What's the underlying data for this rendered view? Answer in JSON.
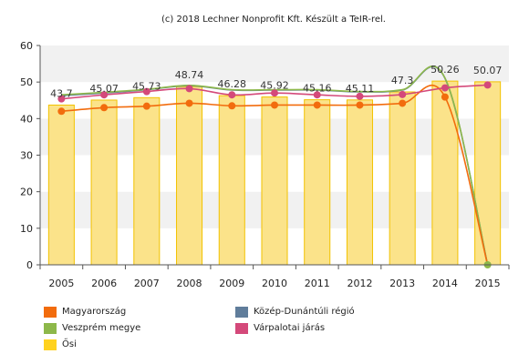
{
  "chart_data": {
    "type": "bar",
    "title": "(c) 2018 Lechner Nonprofit Kft. Készült a TeIR-rel.",
    "categories": [
      "2005",
      "2006",
      "2007",
      "2008",
      "2009",
      "2010",
      "2011",
      "2012",
      "2013",
      "2014",
      "2015"
    ],
    "ylim": [
      0,
      60
    ],
    "yticks": [
      0,
      10,
      20,
      30,
      40,
      50,
      60
    ],
    "grid": "horizontal-bands",
    "legend_position": "bottom",
    "colors": {
      "bar_fill": "#fbe38a",
      "bar_stroke": "#f2c200",
      "Magyarország": "#f26c0d",
      "Közép-Dunántúli régió": "#607d9b",
      "Veszprém megye": "#8db84a",
      "Várpalotai járás": "#d4497a",
      "Ősi": "#ffd21f"
    },
    "series": [
      {
        "name": "Magyarország",
        "kind": "line",
        "values": [
          42.0,
          43.0,
          43.4,
          44.2,
          43.5,
          43.7,
          43.7,
          43.7,
          44.2,
          45.9,
          0
        ]
      },
      {
        "name": "Közép-Dunántúli régió",
        "kind": "line",
        "values": [
          46.3,
          47.0,
          47.9,
          49.0,
          47.8,
          47.8,
          47.8,
          47.3,
          47.8,
          51.0,
          0
        ]
      },
      {
        "name": "Veszprém megye",
        "kind": "line",
        "values": [
          46.5,
          47.2,
          48.0,
          49.1,
          47.9,
          47.9,
          47.9,
          47.4,
          47.9,
          51.1,
          0
        ]
      },
      {
        "name": "Várpalotai járás",
        "kind": "line",
        "values": [
          45.4,
          46.5,
          47.4,
          48.2,
          46.5,
          47.0,
          46.5,
          46.1,
          46.6,
          48.4,
          49.2
        ]
      },
      {
        "name": "Ősi",
        "kind": "bar",
        "values": [
          43.7,
          45.07,
          45.73,
          48.74,
          46.28,
          45.92,
          45.16,
          45.11,
          47.3,
          50.26,
          50.07
        ]
      }
    ],
    "data_labels": [
      "43.7",
      "45.07",
      "45.73",
      "48.74",
      "46.28",
      "45.92",
      "45.16",
      "45.11",
      "47.3",
      "50.26",
      "50.07"
    ]
  },
  "legend": [
    {
      "name": "Magyarország",
      "color": "#f26c0d"
    },
    {
      "name": "Közép-Dunántúli régió",
      "color": "#607d9b"
    },
    {
      "name": "Veszprém megye",
      "color": "#8db84a"
    },
    {
      "name": "Várpalotai járás",
      "color": "#d4497a"
    },
    {
      "name": "Ősi",
      "color": "#ffd21f"
    }
  ]
}
